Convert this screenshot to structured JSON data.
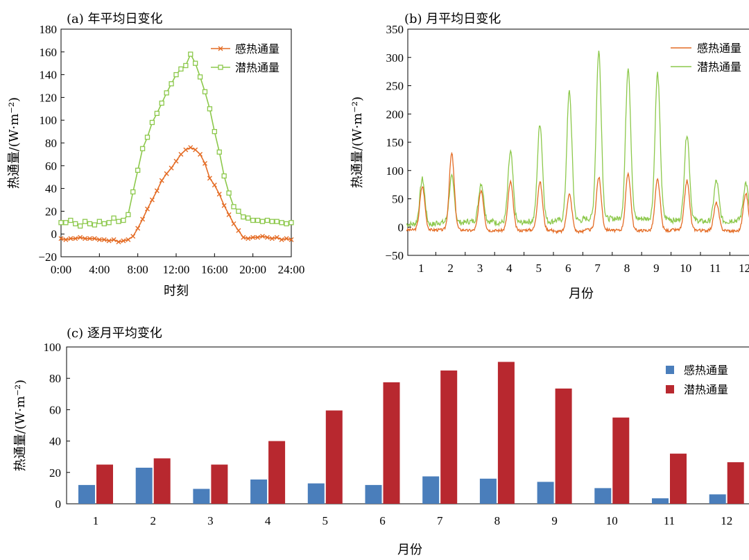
{
  "chart_data": [
    {
      "id": "a",
      "type": "line",
      "title": "(a) 年平均日变化",
      "xlabel": "时刻",
      "ylabel": "热通量/(W·m⁻²)",
      "ylim": [
        -20,
        180
      ],
      "yticks": [
        -20,
        0,
        20,
        40,
        60,
        80,
        100,
        120,
        140,
        160,
        180
      ],
      "yticklabels": [
        "−20",
        "0",
        "20",
        "40",
        "60",
        "80",
        "100",
        "120",
        "140",
        "160",
        "180"
      ],
      "xlim": [
        0,
        24
      ],
      "xticks": [
        0,
        4,
        8,
        12,
        16,
        20,
        24
      ],
      "xticklabels": [
        "0:00",
        "4:00",
        "8:00",
        "12:00",
        "16:00",
        "20:00",
        "24:00"
      ],
      "legend_position": "top-right",
      "series": [
        {
          "name": "感热通量",
          "color": "#e46c25",
          "marker": "x",
          "x": [
            0,
            0.5,
            1,
            1.5,
            2,
            2.5,
            3,
            3.5,
            4,
            4.5,
            5,
            5.5,
            6,
            6.5,
            7,
            7.5,
            8,
            8.5,
            9,
            9.5,
            10,
            10.5,
            11,
            11.5,
            12,
            12.5,
            13,
            13.5,
            14,
            14.5,
            15,
            15.5,
            16,
            16.5,
            17,
            17.5,
            18,
            18.5,
            19,
            19.5,
            20,
            20.5,
            21,
            21.5,
            22,
            22.5,
            23,
            23.5,
            24
          ],
          "y": [
            -4,
            -5,
            -4,
            -4,
            -3,
            -4,
            -4,
            -4,
            -5,
            -5,
            -6,
            -5,
            -7,
            -6,
            -5,
            -2,
            5,
            13,
            22,
            30,
            38,
            47,
            53,
            58,
            64,
            70,
            74,
            76,
            74,
            70,
            62,
            49,
            43,
            35,
            25,
            17,
            9,
            3,
            -3,
            -4,
            -3,
            -3,
            -2,
            -3,
            -4,
            -3,
            -5,
            -4,
            -5
          ]
        },
        {
          "name": "潜热通量",
          "color": "#8cc84b",
          "marker": "square",
          "x": [
            0,
            0.5,
            1,
            1.5,
            2,
            2.5,
            3,
            3.5,
            4,
            4.5,
            5,
            5.5,
            6,
            6.5,
            7,
            7.5,
            8,
            8.5,
            9,
            9.5,
            10,
            10.5,
            11,
            11.5,
            12,
            12.5,
            13,
            13.5,
            14,
            14.5,
            15,
            15.5,
            16,
            16.5,
            17,
            17.5,
            18,
            18.5,
            19,
            19.5,
            20,
            20.5,
            21,
            21.5,
            22,
            22.5,
            23,
            23.5,
            24
          ],
          "y": [
            10,
            10,
            12,
            9,
            7,
            11,
            9,
            8,
            11,
            9,
            10,
            14,
            11,
            12,
            17,
            37,
            56,
            75,
            85,
            98,
            106,
            115,
            124,
            132,
            140,
            145,
            148,
            158,
            150,
            138,
            125,
            110,
            90,
            72,
            51,
            36,
            24,
            20,
            15,
            14,
            12,
            12,
            11,
            12,
            11,
            11,
            10,
            9,
            10
          ]
        }
      ]
    },
    {
      "id": "b",
      "type": "line",
      "title": "(b) 月平均日变化",
      "xlabel": "月份",
      "ylabel": "热通量/(W·m⁻²)",
      "ylim": [
        -50,
        350
      ],
      "yticks": [
        -50,
        0,
        50,
        100,
        150,
        200,
        250,
        300,
        350
      ],
      "yticklabels": [
        "−50",
        "0",
        "50",
        "100",
        "150",
        "200",
        "250",
        "300",
        "350"
      ],
      "xticklabels": [
        "1",
        "2",
        "3",
        "4",
        "5",
        "6",
        "7",
        "8",
        "9",
        "10",
        "11",
        "12"
      ],
      "legend_position": "top-right",
      "monthly_peaks": {
        "感热通量": [
          72,
          130,
          65,
          80,
          80,
          58,
          88,
          95,
          84,
          82,
          43,
          60
        ],
        "潜热通量": [
          85,
          88,
          78,
          133,
          183,
          240,
          311,
          284,
          272,
          165,
          82,
          78
        ],
        "潜热通量_baseline": [
          5,
          8,
          10,
          8,
          10,
          12,
          15,
          15,
          15,
          12,
          10,
          12
        ]
      },
      "series": [
        {
          "name": "感热通量",
          "color": "#e46c25"
        },
        {
          "name": "潜热通量",
          "color": "#8cc84b"
        }
      ]
    },
    {
      "id": "c",
      "type": "bar",
      "title": "(c) 逐月平均变化",
      "xlabel": "月份",
      "ylabel": "热通量/(W·m⁻²)",
      "ylim": [
        0,
        100
      ],
      "yticks": [
        0,
        20,
        40,
        60,
        80,
        100
      ],
      "categories": [
        "1",
        "2",
        "3",
        "4",
        "5",
        "6",
        "7",
        "8",
        "9",
        "10",
        "11",
        "12"
      ],
      "legend_position": "top-right",
      "series": [
        {
          "name": "感热通量",
          "color": "#4a7ebb",
          "values": [
            12,
            23,
            9.5,
            15.5,
            13,
            12,
            17.5,
            16,
            14,
            10,
            3.5,
            6
          ]
        },
        {
          "name": "潜热通量",
          "color": "#b8282f",
          "values": [
            25,
            29,
            25,
            40,
            59.5,
            77.5,
            85,
            90.5,
            73.5,
            55,
            32,
            26.5
          ]
        }
      ]
    }
  ]
}
